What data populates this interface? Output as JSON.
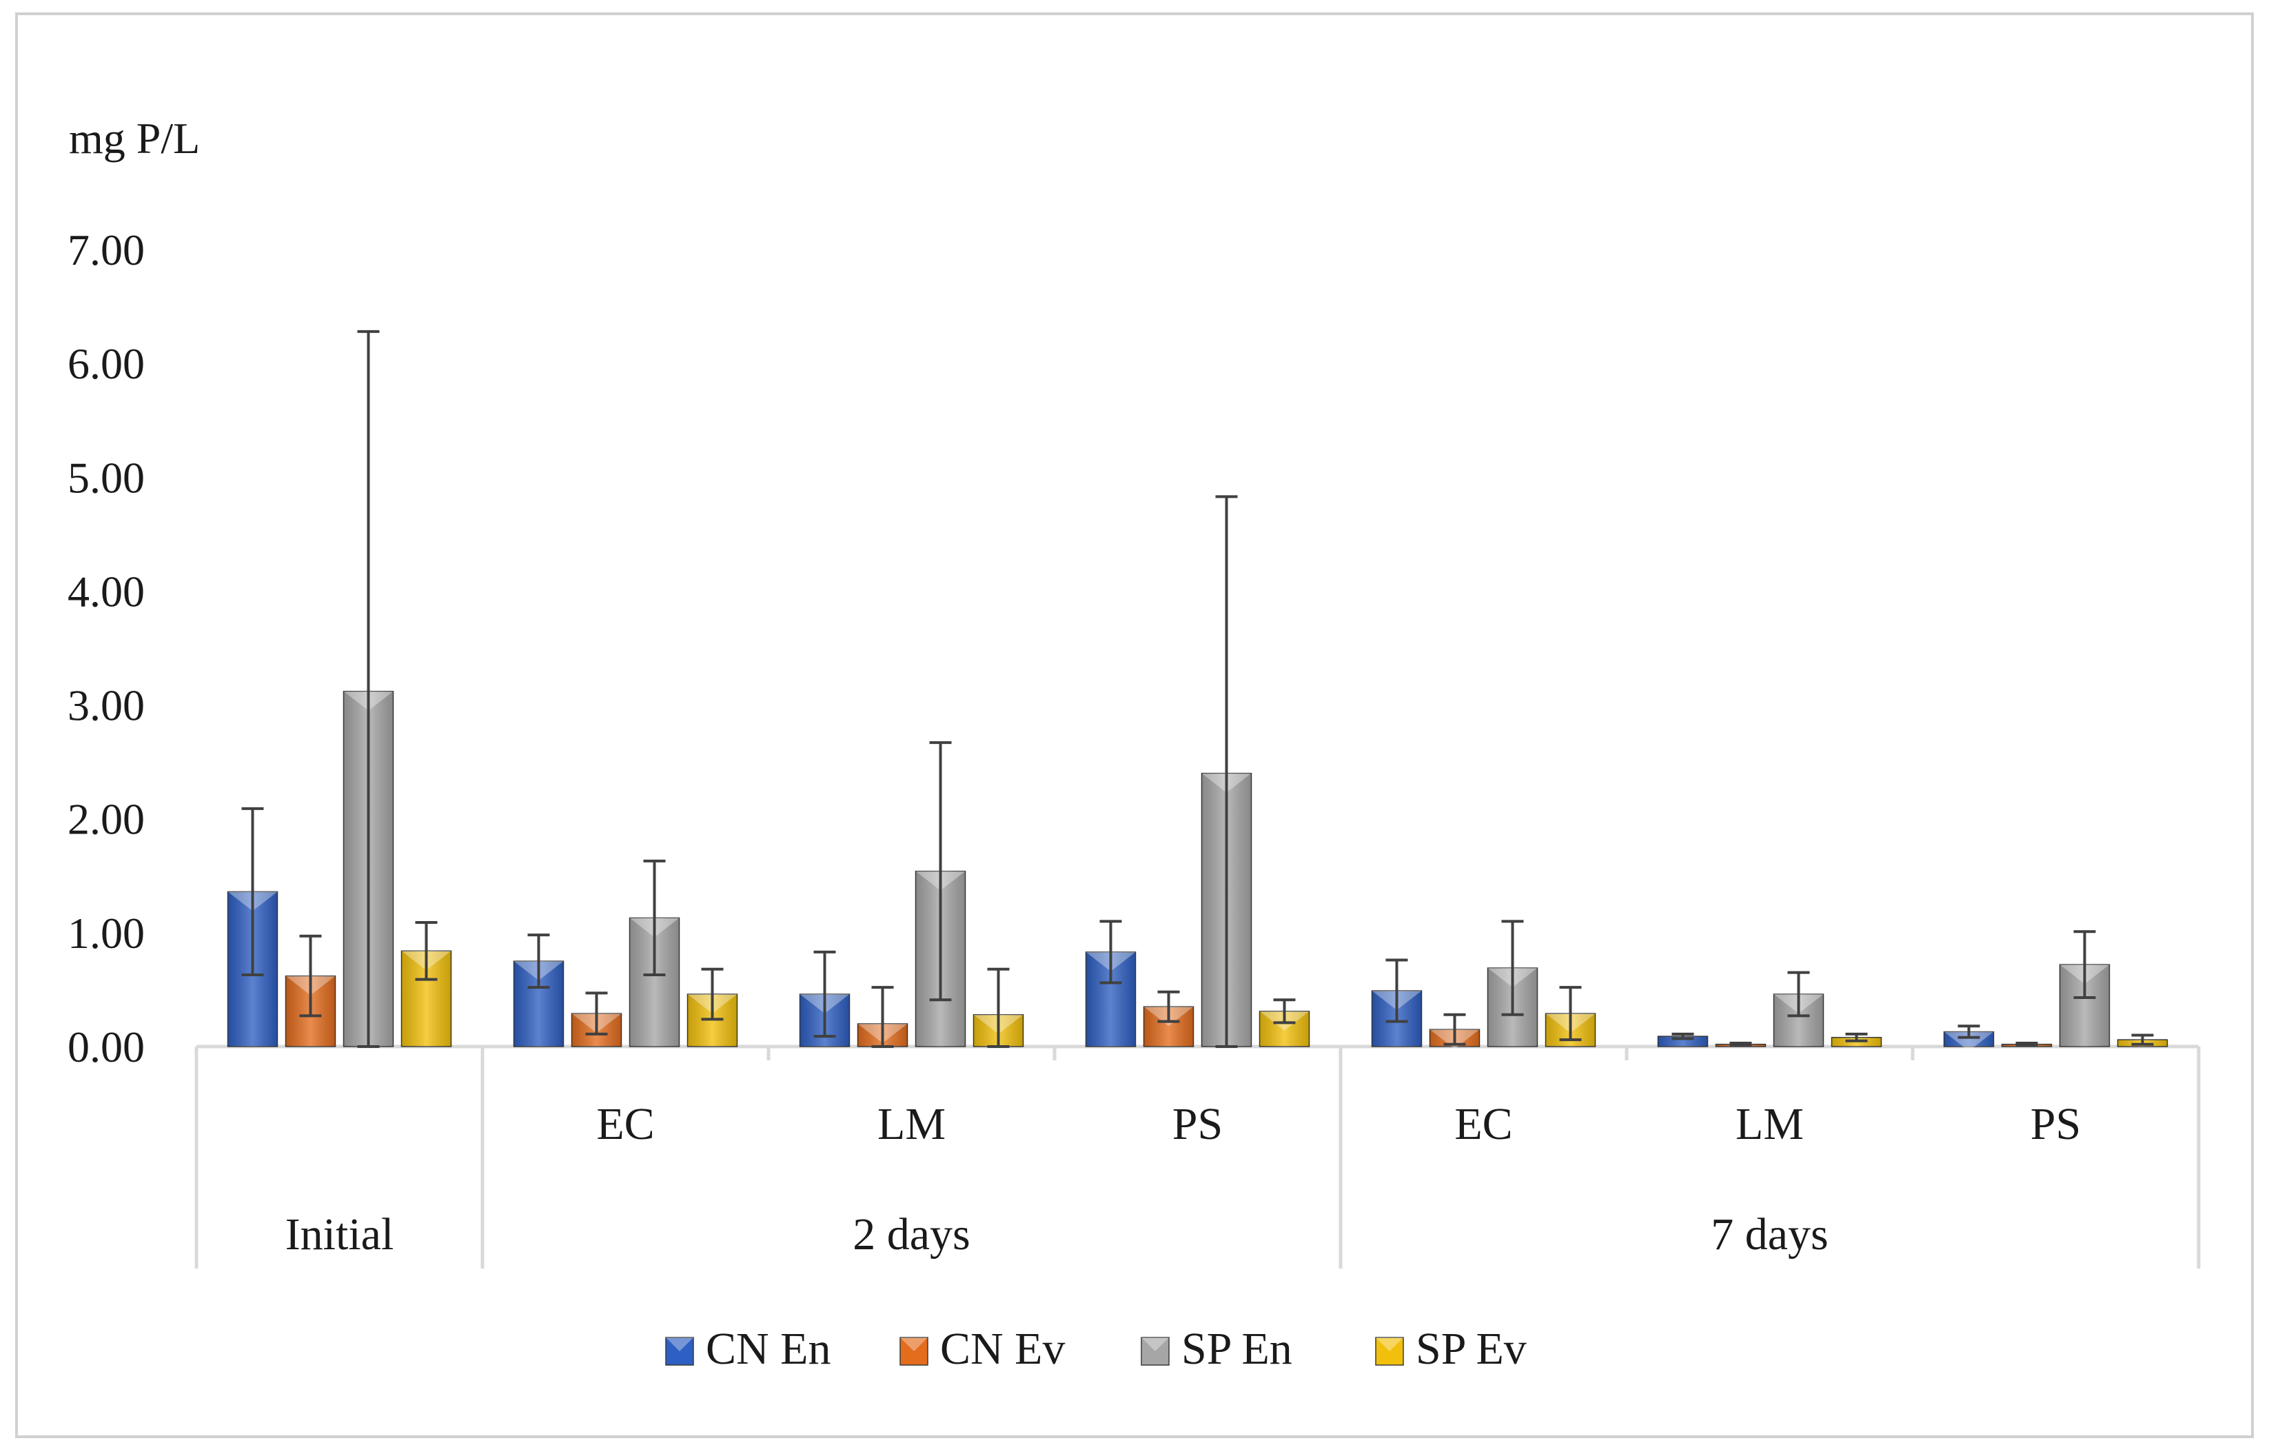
{
  "chart_data": {
    "type": "bar",
    "ylabel": "mg P/L",
    "ylim": [
      0,
      7
    ],
    "yticks": [
      "0.00",
      "1.00",
      "2.00",
      "3.00",
      "4.00",
      "5.00",
      "6.00",
      "7.00"
    ],
    "grid": false,
    "legend": "bottom",
    "groups": [
      {
        "label": "Initial",
        "categories": [
          ""
        ]
      },
      {
        "label": "2 days",
        "categories": [
          "EC",
          "LM",
          "PS"
        ]
      },
      {
        "label": "7 days",
        "categories": [
          "EC",
          "LM",
          "PS"
        ]
      }
    ],
    "series": [
      {
        "name": "CN En",
        "color": "#2e5fc2",
        "values": [
          1.36,
          0.75,
          0.46,
          0.83,
          0.49,
          0.09,
          0.13
        ],
        "errors": [
          0.73,
          0.23,
          0.37,
          0.27,
          0.27,
          0.02,
          0.05
        ]
      },
      {
        "name": "CN Ev",
        "color": "#e36c1d",
        "values": [
          0.62,
          0.29,
          0.2,
          0.35,
          0.15,
          0.02,
          0.02
        ],
        "errors": [
          0.35,
          0.18,
          0.32,
          0.13,
          0.13,
          0.01,
          0.01
        ]
      },
      {
        "name": "SP En",
        "color": "#a6a6a6",
        "values": [
          3.12,
          1.13,
          1.54,
          2.4,
          0.69,
          0.46,
          0.72
        ],
        "errors": [
          3.16,
          0.5,
          1.13,
          2.43,
          0.41,
          0.19,
          0.29
        ]
      },
      {
        "name": "SP Ev",
        "color": "#f2c00c",
        "values": [
          0.84,
          0.46,
          0.28,
          0.31,
          0.29,
          0.08,
          0.06
        ],
        "errors": [
          0.25,
          0.22,
          0.4,
          0.1,
          0.23,
          0.03,
          0.04
        ]
      }
    ]
  }
}
